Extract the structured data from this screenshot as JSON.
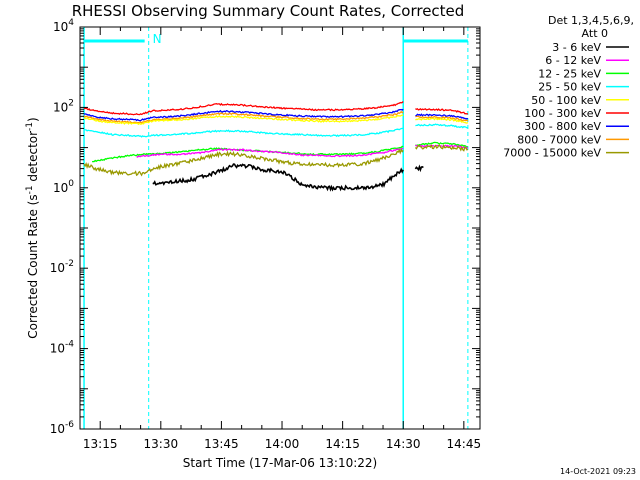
{
  "chart_data": {
    "type": "line",
    "title": "RHESSI Observing Summary Count Rates, Corrected",
    "xlabel": "Start Time (17-Mar-06 13:10:22)",
    "ylabel": "Corrected Count Rate (s^-1 detector^-1)",
    "ylabel_parts": [
      "Corrected Count Rate (s",
      "-1",
      " detector",
      "-1",
      ")"
    ],
    "y_scale": "log",
    "ylim": [
      1e-06,
      10000.0
    ],
    "xlim": [
      "13:10",
      "14:49"
    ],
    "x_ticks": [
      "13:15",
      "13:30",
      "13:45",
      "14:00",
      "14:15",
      "14:30",
      "14:45"
    ],
    "y_ticks": [
      {
        "value": 1e-06,
        "base": "10",
        "exp": "-6"
      },
      {
        "value": 0.0001,
        "base": "10",
        "exp": "-4"
      },
      {
        "value": 0.01,
        "base": "10",
        "exp": "-2"
      },
      {
        "value": 1,
        "base": "10",
        "exp": "0"
      },
      {
        "value": 100,
        "base": "10",
        "exp": "2"
      },
      {
        "value": 10000,
        "base": "10",
        "exp": "4"
      }
    ],
    "legend_header": [
      "Det 1,3,4,5,6,9,",
      "Att 0"
    ],
    "legend_position": "right",
    "annotation": "N",
    "timestamp": "14-Oct-2021 09:23",
    "night_intervals": [
      [
        "13:11",
        "13:26"
      ],
      [
        "14:30",
        "14:46"
      ]
    ],
    "cyan_vlines": [
      "13:11",
      "14:30"
    ],
    "cyan_dashed_vlines": [
      "13:27",
      "14:46"
    ],
    "series": [
      {
        "name": "3 - 6 keV",
        "color": "#000000",
        "segments": [
          [
            [
              "13:28",
              1.3
            ],
            [
              "13:33",
              1.4
            ],
            [
              "13:38",
              1.6
            ],
            [
              "13:43",
              2.3
            ],
            [
              "13:48",
              3.5
            ],
            [
              "13:52",
              3.4
            ],
            [
              "13:56",
              2.7
            ],
            [
              "13:59",
              2.6
            ],
            [
              "14:01",
              2.3
            ],
            [
              "14:05",
              1.2
            ],
            [
              "14:09",
              1.0
            ],
            [
              "14:13",
              1.0
            ],
            [
              "14:18",
              1.0
            ],
            [
              "14:22",
              1.0
            ],
            [
              "14:25",
              1.2
            ],
            [
              "14:28",
              2.1
            ],
            [
              "14:30",
              2.8
            ]
          ],
          [
            [
              "14:33",
              2.9
            ],
            [
              "14:35",
              3.2
            ]
          ]
        ]
      },
      {
        "name": "6 - 12 keV",
        "color": "#ff00ff",
        "segments": [
          [
            [
              "13:24",
              6.0
            ],
            [
              "13:30",
              6.8
            ],
            [
              "13:35",
              6.8
            ],
            [
              "13:40",
              7.5
            ],
            [
              "13:45",
              9.0
            ],
            [
              "13:50",
              8.8
            ],
            [
              "13:55",
              8.0
            ],
            [
              "14:00",
              7.5
            ],
            [
              "14:05",
              6.5
            ],
            [
              "14:10",
              6.3
            ],
            [
              "14:15",
              6.2
            ],
            [
              "14:20",
              6.5
            ],
            [
              "14:25",
              7.5
            ],
            [
              "14:30",
              9.5
            ]
          ],
          [
            [
              "14:33",
              11.0
            ],
            [
              "14:38",
              11.0
            ],
            [
              "14:42",
              11.0
            ],
            [
              "14:46",
              10.0
            ]
          ]
        ]
      },
      {
        "name": "12 - 25 keV",
        "color": "#00ff00",
        "segments": [
          [
            [
              "13:13",
              4.5
            ],
            [
              "13:18",
              5.5
            ],
            [
              "13:23",
              6.5
            ],
            [
              "13:28",
              7.0
            ],
            [
              "13:33",
              7.5
            ],
            [
              "13:38",
              8.5
            ],
            [
              "13:43",
              9.5
            ],
            [
              "13:48",
              9.0
            ],
            [
              "13:53",
              8.3
            ],
            [
              "13:58",
              7.8
            ],
            [
              "14:03",
              7.2
            ],
            [
              "14:08",
              6.8
            ],
            [
              "14:13",
              6.8
            ],
            [
              "14:18",
              7.0
            ],
            [
              "14:23",
              7.8
            ],
            [
              "14:28",
              9.5
            ],
            [
              "14:30",
              10.5
            ]
          ],
          [
            [
              "14:33",
              11.5
            ],
            [
              "14:38",
              13.0
            ],
            [
              "14:43",
              12.0
            ],
            [
              "14:46",
              10.5
            ]
          ]
        ]
      },
      {
        "name": "25 - 50 keV",
        "color": "#00ffff",
        "segments": [
          [
            [
              "13:11",
              28
            ],
            [
              "13:15",
              24
            ],
            [
              "13:18",
              21
            ],
            [
              "13:22",
              20
            ],
            [
              "13:25",
              19
            ],
            [
              "13:28",
              20
            ],
            [
              "13:32",
              21
            ],
            [
              "13:36",
              22
            ],
            [
              "13:40",
              24
            ],
            [
              "13:44",
              26
            ],
            [
              "13:48",
              26
            ],
            [
              "13:52",
              25
            ],
            [
              "13:56",
              23
            ],
            [
              "14:00",
              22
            ],
            [
              "14:05",
              21
            ],
            [
              "14:10",
              20
            ],
            [
              "14:15",
              20
            ],
            [
              "14:20",
              21
            ],
            [
              "14:24",
              23
            ],
            [
              "14:28",
              27
            ],
            [
              "14:30",
              30
            ]
          ],
          [
            [
              "14:33",
              36
            ],
            [
              "14:38",
              37
            ],
            [
              "14:42",
              35
            ],
            [
              "14:46",
              31
            ]
          ]
        ]
      },
      {
        "name": "50 - 100 keV",
        "color": "#ffff00",
        "segments": [
          [
            [
              "13:11",
              55
            ],
            [
              "13:15",
              45
            ],
            [
              "13:18",
              42
            ],
            [
              "13:22",
              40
            ],
            [
              "13:25",
              39
            ],
            [
              "13:28",
              46
            ],
            [
              "13:32",
              48
            ],
            [
              "13:36",
              50
            ],
            [
              "13:40",
              55
            ],
            [
              "13:44",
              60
            ],
            [
              "13:48",
              59
            ],
            [
              "13:52",
              56
            ],
            [
              "13:56",
              53
            ],
            [
              "14:00",
              50
            ],
            [
              "14:05",
              47
            ],
            [
              "14:10",
              45
            ],
            [
              "14:15",
              45
            ],
            [
              "14:20",
              47
            ],
            [
              "14:24",
              51
            ],
            [
              "14:28",
              58
            ],
            [
              "14:30",
              65
            ]
          ],
          [
            [
              "14:33",
              50
            ],
            [
              "14:38",
              52
            ],
            [
              "14:42",
              49
            ],
            [
              "14:46",
              42
            ]
          ]
        ]
      },
      {
        "name": "100 - 300 keV",
        "color": "#ff0000",
        "segments": [
          [
            [
              "13:11",
              95
            ],
            [
              "13:15",
              78
            ],
            [
              "13:18",
              72
            ],
            [
              "13:22",
              69
            ],
            [
              "13:25",
              67
            ],
            [
              "13:28",
              82
            ],
            [
              "13:32",
              86
            ],
            [
              "13:36",
              92
            ],
            [
              "13:40",
              105
            ],
            [
              "13:44",
              120
            ],
            [
              "13:48",
              118
            ],
            [
              "13:52",
              110
            ],
            [
              "13:56",
              102
            ],
            [
              "14:00",
              96
            ],
            [
              "14:05",
              90
            ],
            [
              "14:10",
              87
            ],
            [
              "14:15",
              87
            ],
            [
              "14:20",
              92
            ],
            [
              "14:24",
              100
            ],
            [
              "14:28",
              115
            ],
            [
              "14:30",
              140
            ]
          ],
          [
            [
              "14:33",
              90
            ],
            [
              "14:38",
              88
            ],
            [
              "14:42",
              85
            ],
            [
              "14:46",
              70
            ]
          ]
        ]
      },
      {
        "name": "300 - 800 keV",
        "color": "#0000ff",
        "segments": [
          [
            [
              "13:11",
              68
            ],
            [
              "13:15",
              56
            ],
            [
              "13:18",
              52
            ],
            [
              "13:22",
              50
            ],
            [
              "13:25",
              48
            ],
            [
              "13:28",
              56
            ],
            [
              "13:32",
              59
            ],
            [
              "13:36",
              63
            ],
            [
              "13:40",
              71
            ],
            [
              "13:44",
              80
            ],
            [
              "13:48",
              79
            ],
            [
              "13:52",
              74
            ],
            [
              "13:56",
              69
            ],
            [
              "14:00",
              65
            ],
            [
              "14:05",
              61
            ],
            [
              "14:10",
              59
            ],
            [
              "14:15",
              59
            ],
            [
              "14:20",
              62
            ],
            [
              "14:24",
              68
            ],
            [
              "14:28",
              78
            ],
            [
              "14:30",
              90
            ]
          ],
          [
            [
              "14:33",
              65
            ],
            [
              "14:38",
              64
            ],
            [
              "14:42",
              62
            ],
            [
              "14:46",
              52
            ]
          ]
        ]
      },
      {
        "name": "800 - 7000 keV",
        "color": "#ff9900",
        "segments": [
          [
            [
              "13:11",
              60
            ],
            [
              "13:15",
              49
            ],
            [
              "13:18",
              45
            ],
            [
              "13:22",
              43
            ],
            [
              "13:25",
              42
            ],
            [
              "13:28",
              49
            ],
            [
              "13:32",
              52
            ],
            [
              "13:36",
              55
            ],
            [
              "13:40",
              62
            ],
            [
              "13:44",
              70
            ],
            [
              "13:48",
              69
            ],
            [
              "13:52",
              65
            ],
            [
              "13:56",
              60
            ],
            [
              "14:00",
              57
            ],
            [
              "14:05",
              53
            ],
            [
              "14:10",
              51
            ],
            [
              "14:15",
              51
            ],
            [
              "14:20",
              54
            ],
            [
              "14:24",
              59
            ],
            [
              "14:28",
              67
            ],
            [
              "14:30",
              78
            ]
          ],
          [
            [
              "14:33",
              58
            ],
            [
              "14:38",
              57
            ],
            [
              "14:42",
              55
            ],
            [
              "14:46",
              46
            ]
          ]
        ]
      },
      {
        "name": "7000 - 15000 keV",
        "color": "#999900",
        "segments": [
          [
            [
              "13:11",
              3.8
            ],
            [
              "13:14",
              3.0
            ],
            [
              "13:17",
              2.5
            ],
            [
              "13:20",
              2.3
            ],
            [
              "13:23",
              2.3
            ],
            [
              "13:26",
              2.3
            ],
            [
              "13:29",
              3.2
            ],
            [
              "13:33",
              3.8
            ],
            [
              "13:37",
              4.5
            ],
            [
              "13:41",
              5.8
            ],
            [
              "13:45",
              7.0
            ],
            [
              "13:49",
              6.8
            ],
            [
              "13:53",
              5.8
            ],
            [
              "13:57",
              5.0
            ],
            [
              "14:01",
              4.3
            ],
            [
              "14:05",
              3.9
            ],
            [
              "14:10",
              3.7
            ],
            [
              "14:15",
              3.7
            ],
            [
              "14:20",
              4.0
            ],
            [
              "14:24",
              5.0
            ],
            [
              "14:28",
              7.2
            ],
            [
              "14:30",
              8.5
            ]
          ],
          [
            [
              "14:33",
              10.0
            ],
            [
              "14:38",
              10.5
            ],
            [
              "14:42",
              10.0
            ],
            [
              "14:46",
              9.0
            ]
          ]
        ]
      }
    ]
  }
}
